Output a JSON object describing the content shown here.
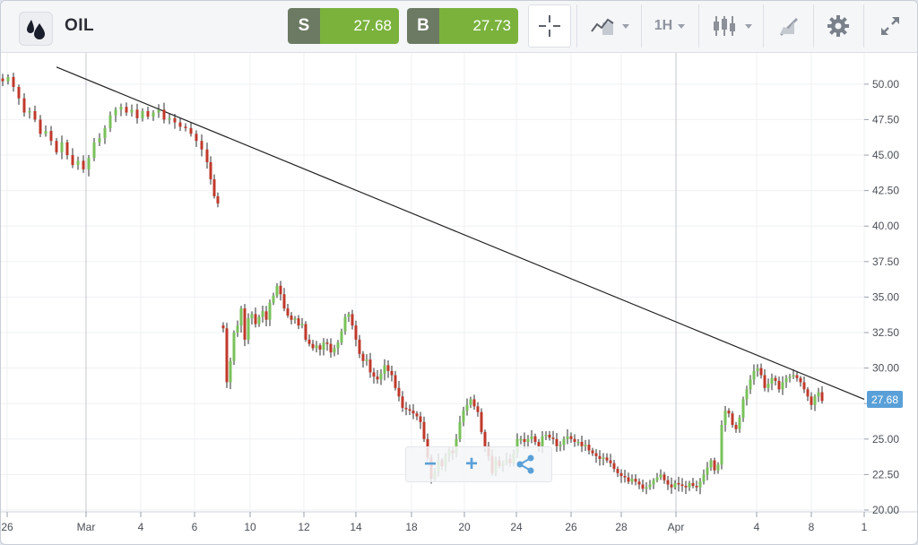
{
  "toolbar": {
    "instrument": "OIL",
    "sell": {
      "label": "S",
      "price": "27.68"
    },
    "buy": {
      "label": "B",
      "price": "27.73"
    },
    "timeframe": "1H",
    "icons": [
      "oil-drops-icon",
      "crosshair-icon",
      "line-chart-icon",
      "candlestick-icon",
      "drawing-tools-icon",
      "gear-icon",
      "expand-icon"
    ]
  },
  "price_tag": "27.68",
  "zoom_controls": {
    "minus": "−",
    "plus": "+",
    "share_icon": "share-icon"
  },
  "colors": {
    "up": "#79c25a",
    "down": "#c0392b",
    "accent": "#5aa0d8",
    "trend": "#222222"
  },
  "chart_data": {
    "type": "candlestick",
    "title": "",
    "xlabel": "",
    "ylabel": "",
    "ylim": [
      20.0,
      51.0
    ],
    "y_ticks": [
      "20.00",
      "22.50",
      "25.00",
      "27.50",
      "30.00",
      "32.50",
      "35.00",
      "37.50",
      "40.00",
      "42.50",
      "45.00",
      "47.50",
      "50.00"
    ],
    "x_ticks": [
      "26",
      "Mar",
      "4",
      "6",
      "10",
      "12",
      "14",
      "18",
      "20",
      "24",
      "26",
      "28",
      "Apr",
      "4",
      "8",
      "1"
    ],
    "last_price": 27.68,
    "grid": true,
    "trendline": [
      {
        "x": "26 Feb",
        "y": 51.2
      },
      {
        "x": "1",
        "y": 27.8
      }
    ],
    "series": [
      {
        "segment": "Feb 26 - Mar 6",
        "values": [
          [
            0,
            50.2
          ],
          [
            6,
            50.5
          ],
          [
            12,
            49.8
          ],
          [
            18,
            49.0
          ],
          [
            24,
            48.0
          ],
          [
            30,
            48.1
          ],
          [
            36,
            47.5
          ],
          [
            42,
            46.5
          ],
          [
            48,
            46.7
          ],
          [
            54,
            46.0
          ],
          [
            60,
            45.2
          ],
          [
            66,
            45.9
          ],
          [
            72,
            45.0
          ],
          [
            78,
            44.3
          ],
          [
            84,
            44.6
          ],
          [
            90,
            44.0
          ],
          [
            96,
            44.8
          ],
          [
            102,
            45.9
          ],
          [
            108,
            46.2
          ],
          [
            114,
            46.9
          ],
          [
            120,
            47.8
          ],
          [
            126,
            48.2
          ],
          [
            132,
            48.4
          ],
          [
            138,
            48.0
          ],
          [
            144,
            48.2
          ],
          [
            150,
            47.6
          ],
          [
            156,
            48.1
          ],
          [
            162,
            47.7
          ],
          [
            168,
            48.0
          ],
          [
            174,
            48.2
          ],
          [
            180,
            47.5
          ],
          [
            186,
            47.6
          ],
          [
            192,
            47.3
          ],
          [
            198,
            47.0
          ],
          [
            204,
            46.9
          ],
          [
            210,
            46.5
          ],
          [
            216,
            46.0
          ],
          [
            222,
            45.4
          ],
          [
            228,
            44.5
          ],
          [
            232,
            43.3
          ],
          [
            236,
            42.1
          ],
          [
            240,
            41.6
          ]
        ]
      },
      {
        "segment": "Mar 9 - Apr 8",
        "values": [
          [
            246,
            32.8
          ],
          [
            250,
            29.0
          ],
          [
            254,
            30.5
          ],
          [
            258,
            32.5
          ],
          [
            262,
            33.0
          ],
          [
            266,
            34.2
          ],
          [
            270,
            32.0
          ],
          [
            274,
            33.5
          ],
          [
            278,
            33.8
          ],
          [
            282,
            33.1
          ],
          [
            286,
            33.6
          ],
          [
            290,
            34.0
          ],
          [
            294,
            33.4
          ],
          [
            298,
            34.6
          ],
          [
            302,
            35.1
          ],
          [
            306,
            35.8
          ],
          [
            310,
            35.2
          ],
          [
            314,
            34.2
          ],
          [
            318,
            33.7
          ],
          [
            322,
            33.4
          ],
          [
            326,
            33.5
          ],
          [
            330,
            33.0
          ],
          [
            334,
            33.1
          ],
          [
            338,
            32.0
          ],
          [
            342,
            31.7
          ],
          [
            346,
            31.4
          ],
          [
            350,
            31.6
          ],
          [
            354,
            31.3
          ],
          [
            358,
            31.8
          ],
          [
            362,
            31.7
          ],
          [
            366,
            31.1
          ],
          [
            370,
            31.4
          ],
          [
            374,
            31.8
          ],
          [
            378,
            32.6
          ],
          [
            382,
            33.6
          ],
          [
            386,
            33.8
          ],
          [
            390,
            33.0
          ],
          [
            394,
            32.0
          ],
          [
            398,
            31.0
          ],
          [
            402,
            30.5
          ],
          [
            406,
            30.6
          ],
          [
            410,
            29.7
          ],
          [
            414,
            29.4
          ],
          [
            418,
            29.2
          ],
          [
            422,
            29.6
          ],
          [
            426,
            30.2
          ],
          [
            430,
            29.8
          ],
          [
            434,
            29.5
          ],
          [
            438,
            28.6
          ],
          [
            442,
            28.0
          ],
          [
            446,
            27.2
          ],
          [
            450,
            27.1
          ],
          [
            454,
            27.0
          ],
          [
            458,
            26.8
          ],
          [
            462,
            26.6
          ],
          [
            466,
            26.2
          ],
          [
            470,
            25.0
          ],
          [
            474,
            23.7
          ],
          [
            478,
            22.2
          ],
          [
            482,
            22.7
          ],
          [
            486,
            23.5
          ],
          [
            490,
            23.1
          ],
          [
            494,
            23.8
          ],
          [
            498,
            24.2
          ],
          [
            502,
            24.0
          ],
          [
            506,
            25.0
          ],
          [
            510,
            26.2
          ],
          [
            514,
            27.0
          ],
          [
            518,
            27.4
          ],
          [
            522,
            27.8
          ],
          [
            526,
            27.3
          ],
          [
            530,
            26.9
          ],
          [
            534,
            25.5
          ],
          [
            538,
            24.5
          ],
          [
            542,
            23.8
          ],
          [
            546,
            22.6
          ],
          [
            550,
            23.5
          ],
          [
            554,
            23.1
          ],
          [
            558,
            23.3
          ],
          [
            562,
            23.6
          ],
          [
            566,
            23.3
          ],
          [
            570,
            24.0
          ],
          [
            574,
            25.0
          ],
          [
            578,
            25.0
          ],
          [
            582,
            24.8
          ],
          [
            586,
            25.0
          ],
          [
            590,
            25.2
          ],
          [
            594,
            24.8
          ],
          [
            598,
            24.5
          ],
          [
            602,
            25.2
          ],
          [
            606,
            25.3
          ],
          [
            610,
            25.1
          ],
          [
            614,
            25.0
          ],
          [
            618,
            24.5
          ],
          [
            622,
            24.6
          ],
          [
            626,
            25.0
          ],
          [
            630,
            25.2
          ],
          [
            634,
            25.0
          ],
          [
            638,
            24.8
          ],
          [
            642,
            24.8
          ],
          [
            646,
            24.5
          ],
          [
            650,
            24.6
          ],
          [
            654,
            24.2
          ],
          [
            658,
            24.0
          ],
          [
            662,
            23.8
          ],
          [
            666,
            23.6
          ],
          [
            670,
            23.7
          ],
          [
            674,
            23.5
          ],
          [
            678,
            23.3
          ],
          [
            682,
            22.9
          ],
          [
            686,
            22.6
          ],
          [
            690,
            22.4
          ],
          [
            694,
            22.3
          ],
          [
            698,
            22.0
          ],
          [
            702,
            22.2
          ],
          [
            706,
            22.0
          ],
          [
            710,
            21.8
          ],
          [
            714,
            21.5
          ],
          [
            718,
            21.6
          ],
          [
            722,
            21.8
          ],
          [
            726,
            22.1
          ],
          [
            730,
            22.3
          ],
          [
            734,
            22.5
          ],
          [
            738,
            22.1
          ],
          [
            742,
            21.8
          ],
          [
            746,
            21.6
          ],
          [
            750,
            21.9
          ],
          [
            754,
            21.8
          ],
          [
            758,
            21.7
          ],
          [
            762,
            21.6
          ],
          [
            766,
            21.9
          ],
          [
            770,
            21.7
          ],
          [
            774,
            21.6
          ],
          [
            778,
            22.0
          ],
          [
            782,
            22.5
          ],
          [
            786,
            23.0
          ],
          [
            790,
            23.5
          ],
          [
            794,
            22.8
          ],
          [
            798,
            23.2
          ],
          [
            802,
            26.0
          ],
          [
            806,
            27.0
          ],
          [
            810,
            26.8
          ],
          [
            814,
            26.0
          ],
          [
            818,
            25.7
          ],
          [
            822,
            26.5
          ],
          [
            826,
            27.8
          ],
          [
            830,
            28.5
          ],
          [
            834,
            29.2
          ],
          [
            838,
            29.8
          ],
          [
            842,
            30.0
          ],
          [
            846,
            29.5
          ],
          [
            850,
            28.6
          ],
          [
            854,
            28.9
          ],
          [
            858,
            29.3
          ],
          [
            862,
            29.1
          ],
          [
            866,
            28.5
          ],
          [
            870,
            29.0
          ],
          [
            874,
            29.3
          ],
          [
            878,
            29.4
          ],
          [
            882,
            29.5
          ],
          [
            886,
            29.3
          ],
          [
            890,
            29.0
          ],
          [
            894,
            28.5
          ],
          [
            898,
            28.0
          ],
          [
            902,
            27.4
          ],
          [
            906,
            28.0
          ],
          [
            910,
            28.3
          ],
          [
            914,
            27.68
          ]
        ]
      }
    ]
  }
}
